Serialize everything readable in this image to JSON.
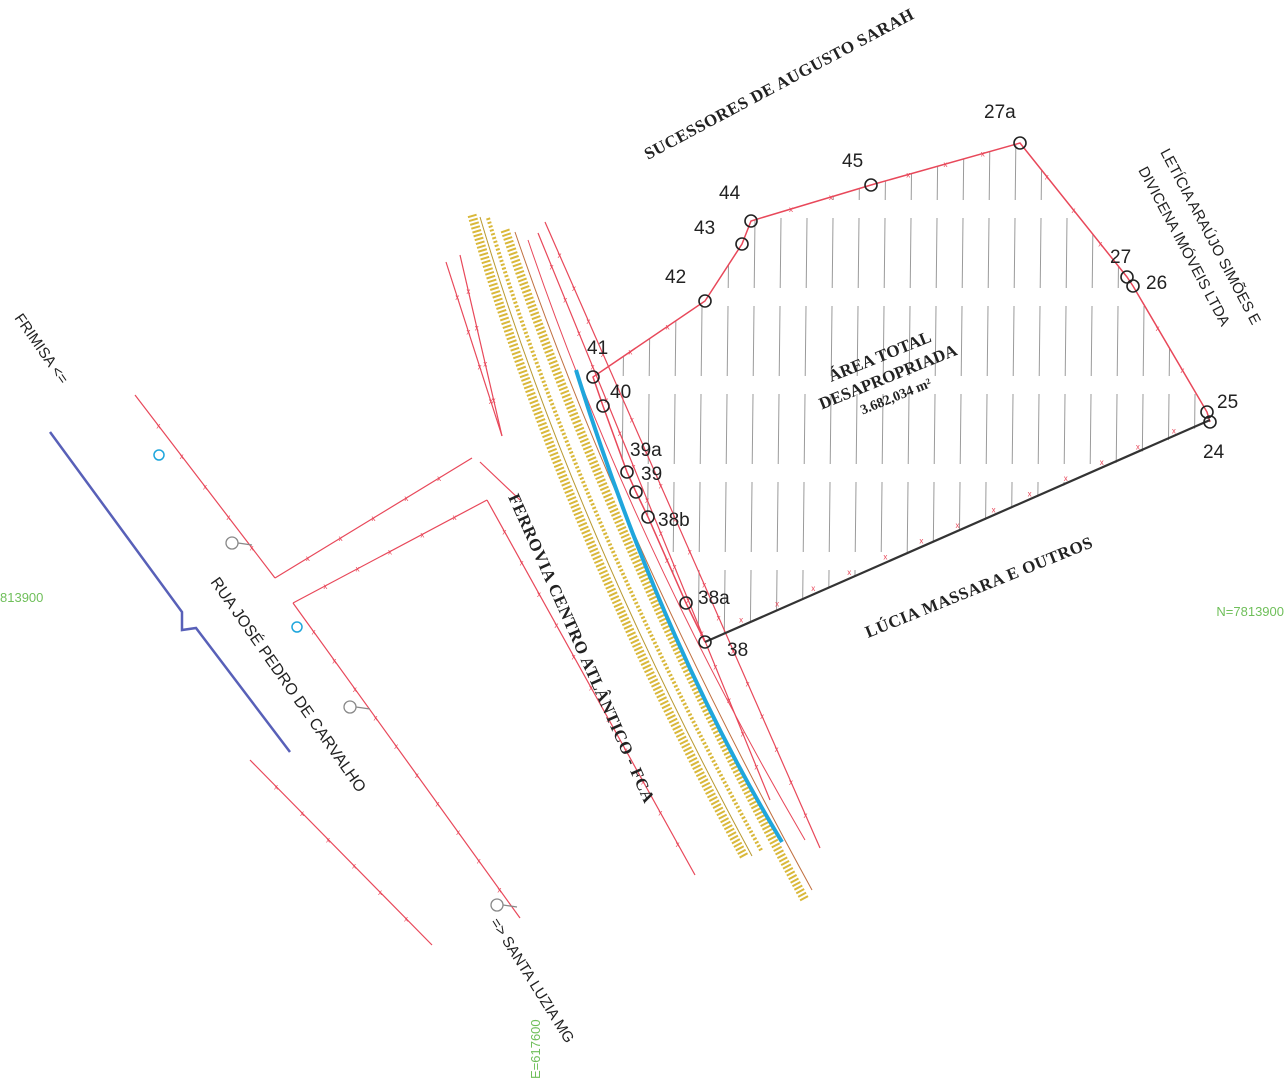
{
  "labels": {
    "owner_north": "SUCESSORES DE AUGUSTO SARAH",
    "owner_east_line1": "LETÍCIA ARAÚJO SIMÕES E",
    "owner_east_line2": "DIVICENA IMÓVEIS LTDA",
    "owner_south": "LÚCIA MASSARA E OUTROS",
    "railway": "FERROVIA CENTRO ATLÂNTICO - FCA",
    "street": "RUA JOSÉ PEDRO DE CARVALHO",
    "direction_north": "FRIMISA <=",
    "direction_south": "=> SANTA LUZIA MG",
    "area_line1": "ÁREA TOTAL",
    "area_line2": "DESAPROPRIADA",
    "area_value": "3.682,034 m²"
  },
  "coordinates": {
    "north_left": "813900",
    "north_right": "N=7813900",
    "east_bottom": "E=617600"
  },
  "points": [
    {
      "id": "27a"
    },
    {
      "id": "45"
    },
    {
      "id": "44"
    },
    {
      "id": "43"
    },
    {
      "id": "42"
    },
    {
      "id": "41"
    },
    {
      "id": "40"
    },
    {
      "id": "39a"
    },
    {
      "id": "39"
    },
    {
      "id": "38b"
    },
    {
      "id": "38a"
    },
    {
      "id": "38"
    },
    {
      "id": "24"
    },
    {
      "id": "25"
    },
    {
      "id": "26"
    },
    {
      "id": "27"
    }
  ],
  "colors": {
    "boundary": "#e8485a",
    "railway_track": "#d9b83a",
    "water_line": "#1fa6dc",
    "street_edge": "#5860b8",
    "coord_text": "#6fbf5a",
    "hatch": "#9a9a9a",
    "south_line": "#333333"
  }
}
